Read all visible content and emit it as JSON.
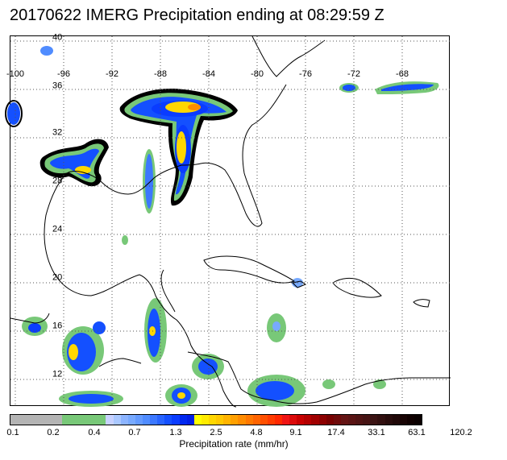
{
  "title": "20170622 IMERG Precipitation ending at 08:29:59 Z",
  "map": {
    "longitude_labels": [
      "-100",
      "-96",
      "-92",
      "-88",
      "-84",
      "-80",
      "-76",
      "-72",
      "-68"
    ],
    "latitude_labels": [
      "40",
      "36",
      "32",
      "28",
      "24",
      "20",
      "16",
      "12"
    ],
    "grid": "dotted"
  },
  "colorbar": {
    "tick_labels": [
      "0.1",
      "0.2",
      "0.4",
      "0.7",
      "1.3",
      "2.5",
      "4.8",
      "9.1",
      "17.4",
      "33.1",
      "63.1",
      "120.2"
    ],
    "units_label": "Precipitation rate (mm/hr)",
    "colors": [
      "#b4b4b4",
      "#b4b4b4",
      "#b4b4b4",
      "#b4b4b4",
      "#b4b4b4",
      "#b4b4b4",
      "#b4b4b4",
      "#78c878",
      "#78c878",
      "#78c878",
      "#78c878",
      "#78c878",
      "#78c878",
      "#c8d2ff",
      "#aac8ff",
      "#8cb4ff",
      "#78aaff",
      "#649bff",
      "#508cff",
      "#3c78ff",
      "#2864ff",
      "#1450ff",
      "#0a3cff",
      "#0028f0",
      "#001ee6",
      "#ffff00",
      "#ffeb00",
      "#ffd700",
      "#ffc800",
      "#ffb400",
      "#ffa000",
      "#ff8c00",
      "#ff7800",
      "#ff6400",
      "#ff5000",
      "#ff3c00",
      "#ff2800",
      "#f01414",
      "#dc0a0a",
      "#c80000",
      "#b40000",
      "#a00000",
      "#8c0000",
      "#780000",
      "#6e0a0a",
      "#641414",
      "#5a1414",
      "#501414",
      "#461414",
      "#3c1414",
      "#321010",
      "#280c0c",
      "#200808",
      "#180404",
      "#100000",
      "#0a0000"
    ]
  }
}
